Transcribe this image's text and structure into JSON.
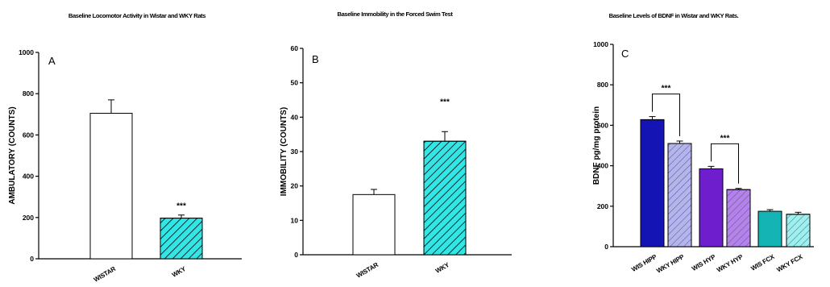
{
  "chart_data": [
    {
      "type": "bar",
      "title": "Baseline Locomotor Activity in Wistar and WKY Rats",
      "panel_label": "A",
      "ylabel": "AMBULATORY (COUNTS)",
      "ylim": [
        0,
        1000
      ],
      "yticks": [
        0,
        200,
        400,
        600,
        800,
        1000
      ],
      "categories": [
        "WISTAR",
        "WKY"
      ],
      "values": [
        705,
        197
      ],
      "errors": [
        65,
        15
      ],
      "fills": [
        "#ffffff",
        "#33e6e6"
      ],
      "hatch": [
        false,
        true
      ],
      "significance": [
        {
          "category": "WKY",
          "label": "***"
        }
      ]
    },
    {
      "type": "bar",
      "title": "Baseline Immobility in the Forced Swim Test",
      "panel_label": "B",
      "ylabel": "IMMOBILITY (COUNTS)",
      "ylim": [
        0,
        60
      ],
      "yticks": [
        0,
        10,
        20,
        30,
        40,
        50,
        60
      ],
      "categories": [
        "WISTAR",
        "WKY"
      ],
      "values": [
        17.5,
        33
      ],
      "errors": [
        1.5,
        2.8
      ],
      "fills": [
        "#ffffff",
        "#33e6e6"
      ],
      "hatch": [
        false,
        true
      ],
      "significance": [
        {
          "category": "WKY",
          "label": "***"
        }
      ]
    },
    {
      "type": "bar",
      "title": "Baseline Levels of BDNF in Wistar and WKY Rats.",
      "panel_label": "C",
      "ylabel": "BDNF pg/mg protein",
      "ylim": [
        0,
        1000
      ],
      "yticks": [
        0,
        200,
        400,
        600,
        800,
        1000
      ],
      "categories": [
        "WIS HIPP",
        "WKY HIPP",
        "WIS HYP",
        "WKY HYP",
        "WIS FCX",
        "WKY FCX"
      ],
      "values": [
        628,
        510,
        385,
        282,
        175,
        160
      ],
      "errors": [
        15,
        12,
        12,
        6,
        8,
        10
      ],
      "fills": [
        "#1414b4",
        "#b4b4f0",
        "#6e1ecc",
        "#b482ec",
        "#14b4b4",
        "#9cf0f0"
      ],
      "hatch": [
        false,
        true,
        false,
        true,
        false,
        true
      ],
      "brackets": [
        {
          "from": "WIS HIPP",
          "to": "WKY HIPP",
          "label": "***"
        },
        {
          "from": "WIS HYP",
          "to": "WKY HYP",
          "label": "***"
        }
      ]
    }
  ]
}
